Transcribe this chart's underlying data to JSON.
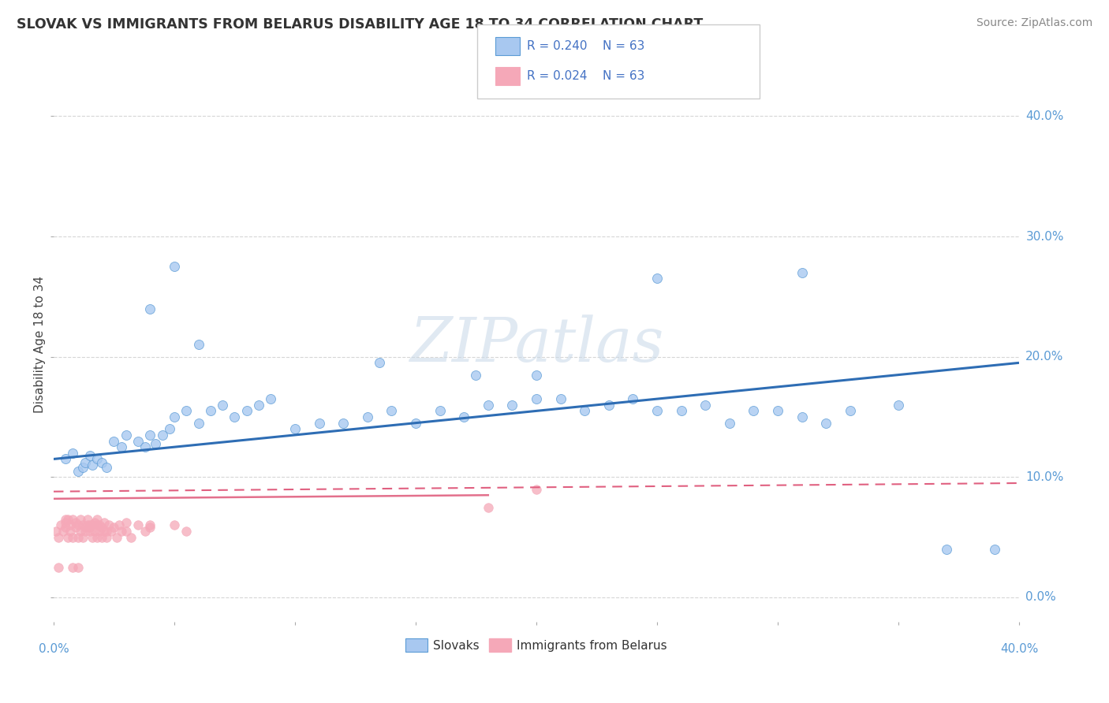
{
  "title": "SLOVAK VS IMMIGRANTS FROM BELARUS DISABILITY AGE 18 TO 34 CORRELATION CHART",
  "source": "Source: ZipAtlas.com",
  "ylabel": "Disability Age 18 to 34",
  "ytick_labels": [
    "0.0%",
    "10.0%",
    "20.0%",
    "30.0%",
    "40.0%"
  ],
  "ytick_values": [
    0.0,
    0.1,
    0.2,
    0.3,
    0.4
  ],
  "xlim": [
    0.0,
    0.4
  ],
  "ylim": [
    -0.02,
    0.44
  ],
  "legend_label1": "Slovaks",
  "legend_label2": "Immigrants from Belarus",
  "R1": 0.24,
  "N1": 63,
  "R2": 0.024,
  "N2": 63,
  "color_slovak": "#a8c8f0",
  "color_belarus": "#f5a8b8",
  "color_edge_slovak": "#5b9bd5",
  "color_line1": "#2e6db4",
  "color_line2": "#e06080",
  "watermark": "ZIPatlas",
  "title_color": "#333333",
  "source_color": "#888888",
  "slovak_x": [
    0.005,
    0.008,
    0.01,
    0.012,
    0.013,
    0.015,
    0.016,
    0.018,
    0.02,
    0.022,
    0.025,
    0.028,
    0.03,
    0.035,
    0.038,
    0.04,
    0.042,
    0.045,
    0.048,
    0.05,
    0.055,
    0.06,
    0.065,
    0.07,
    0.075,
    0.08,
    0.085,
    0.09,
    0.1,
    0.11,
    0.12,
    0.13,
    0.14,
    0.15,
    0.16,
    0.17,
    0.18,
    0.19,
    0.2,
    0.21,
    0.22,
    0.23,
    0.24,
    0.25,
    0.26,
    0.27,
    0.28,
    0.29,
    0.3,
    0.31,
    0.32,
    0.33,
    0.35,
    0.37,
    0.39,
    0.04,
    0.05,
    0.06,
    0.25,
    0.31,
    0.135,
    0.2,
    0.175
  ],
  "slovak_y": [
    0.115,
    0.12,
    0.105,
    0.108,
    0.112,
    0.118,
    0.11,
    0.115,
    0.112,
    0.108,
    0.13,
    0.125,
    0.135,
    0.13,
    0.125,
    0.135,
    0.128,
    0.135,
    0.14,
    0.15,
    0.155,
    0.145,
    0.155,
    0.16,
    0.15,
    0.155,
    0.16,
    0.165,
    0.14,
    0.145,
    0.145,
    0.15,
    0.155,
    0.145,
    0.155,
    0.15,
    0.16,
    0.16,
    0.165,
    0.165,
    0.155,
    0.16,
    0.165,
    0.155,
    0.155,
    0.16,
    0.145,
    0.155,
    0.155,
    0.15,
    0.145,
    0.155,
    0.16,
    0.04,
    0.04,
    0.24,
    0.275,
    0.21,
    0.265,
    0.27,
    0.195,
    0.185,
    0.185
  ],
  "belarus_x": [
    0.001,
    0.002,
    0.003,
    0.004,
    0.005,
    0.005,
    0.006,
    0.006,
    0.007,
    0.007,
    0.008,
    0.008,
    0.009,
    0.009,
    0.01,
    0.01,
    0.011,
    0.011,
    0.012,
    0.012,
    0.013,
    0.013,
    0.014,
    0.014,
    0.015,
    0.015,
    0.016,
    0.016,
    0.017,
    0.017,
    0.018,
    0.018,
    0.019,
    0.019,
    0.02,
    0.02,
    0.021,
    0.021,
    0.022,
    0.023,
    0.024,
    0.025,
    0.026,
    0.027,
    0.028,
    0.03,
    0.032,
    0.035,
    0.038,
    0.04,
    0.018,
    0.022,
    0.015,
    0.005,
    0.03,
    0.05,
    0.055,
    0.2,
    0.18,
    0.04,
    0.008,
    0.002,
    0.01
  ],
  "belarus_y": [
    0.055,
    0.05,
    0.06,
    0.055,
    0.058,
    0.062,
    0.05,
    0.065,
    0.055,
    0.06,
    0.05,
    0.065,
    0.058,
    0.062,
    0.05,
    0.06,
    0.055,
    0.065,
    0.05,
    0.06,
    0.058,
    0.055,
    0.06,
    0.065,
    0.055,
    0.058,
    0.05,
    0.06,
    0.055,
    0.062,
    0.05,
    0.065,
    0.055,
    0.06,
    0.05,
    0.058,
    0.055,
    0.062,
    0.05,
    0.06,
    0.055,
    0.058,
    0.05,
    0.06,
    0.055,
    0.062,
    0.05,
    0.06,
    0.055,
    0.058,
    0.06,
    0.055,
    0.06,
    0.065,
    0.055,
    0.06,
    0.055,
    0.09,
    0.075,
    0.06,
    0.025,
    0.025,
    0.025
  ],
  "line1_x0": 0.0,
  "line1_y0": 0.115,
  "line1_x1": 0.4,
  "line1_y1": 0.195,
  "line2_x0": 0.0,
  "line2_y0": 0.088,
  "line2_x1": 0.4,
  "line2_y1": 0.095
}
